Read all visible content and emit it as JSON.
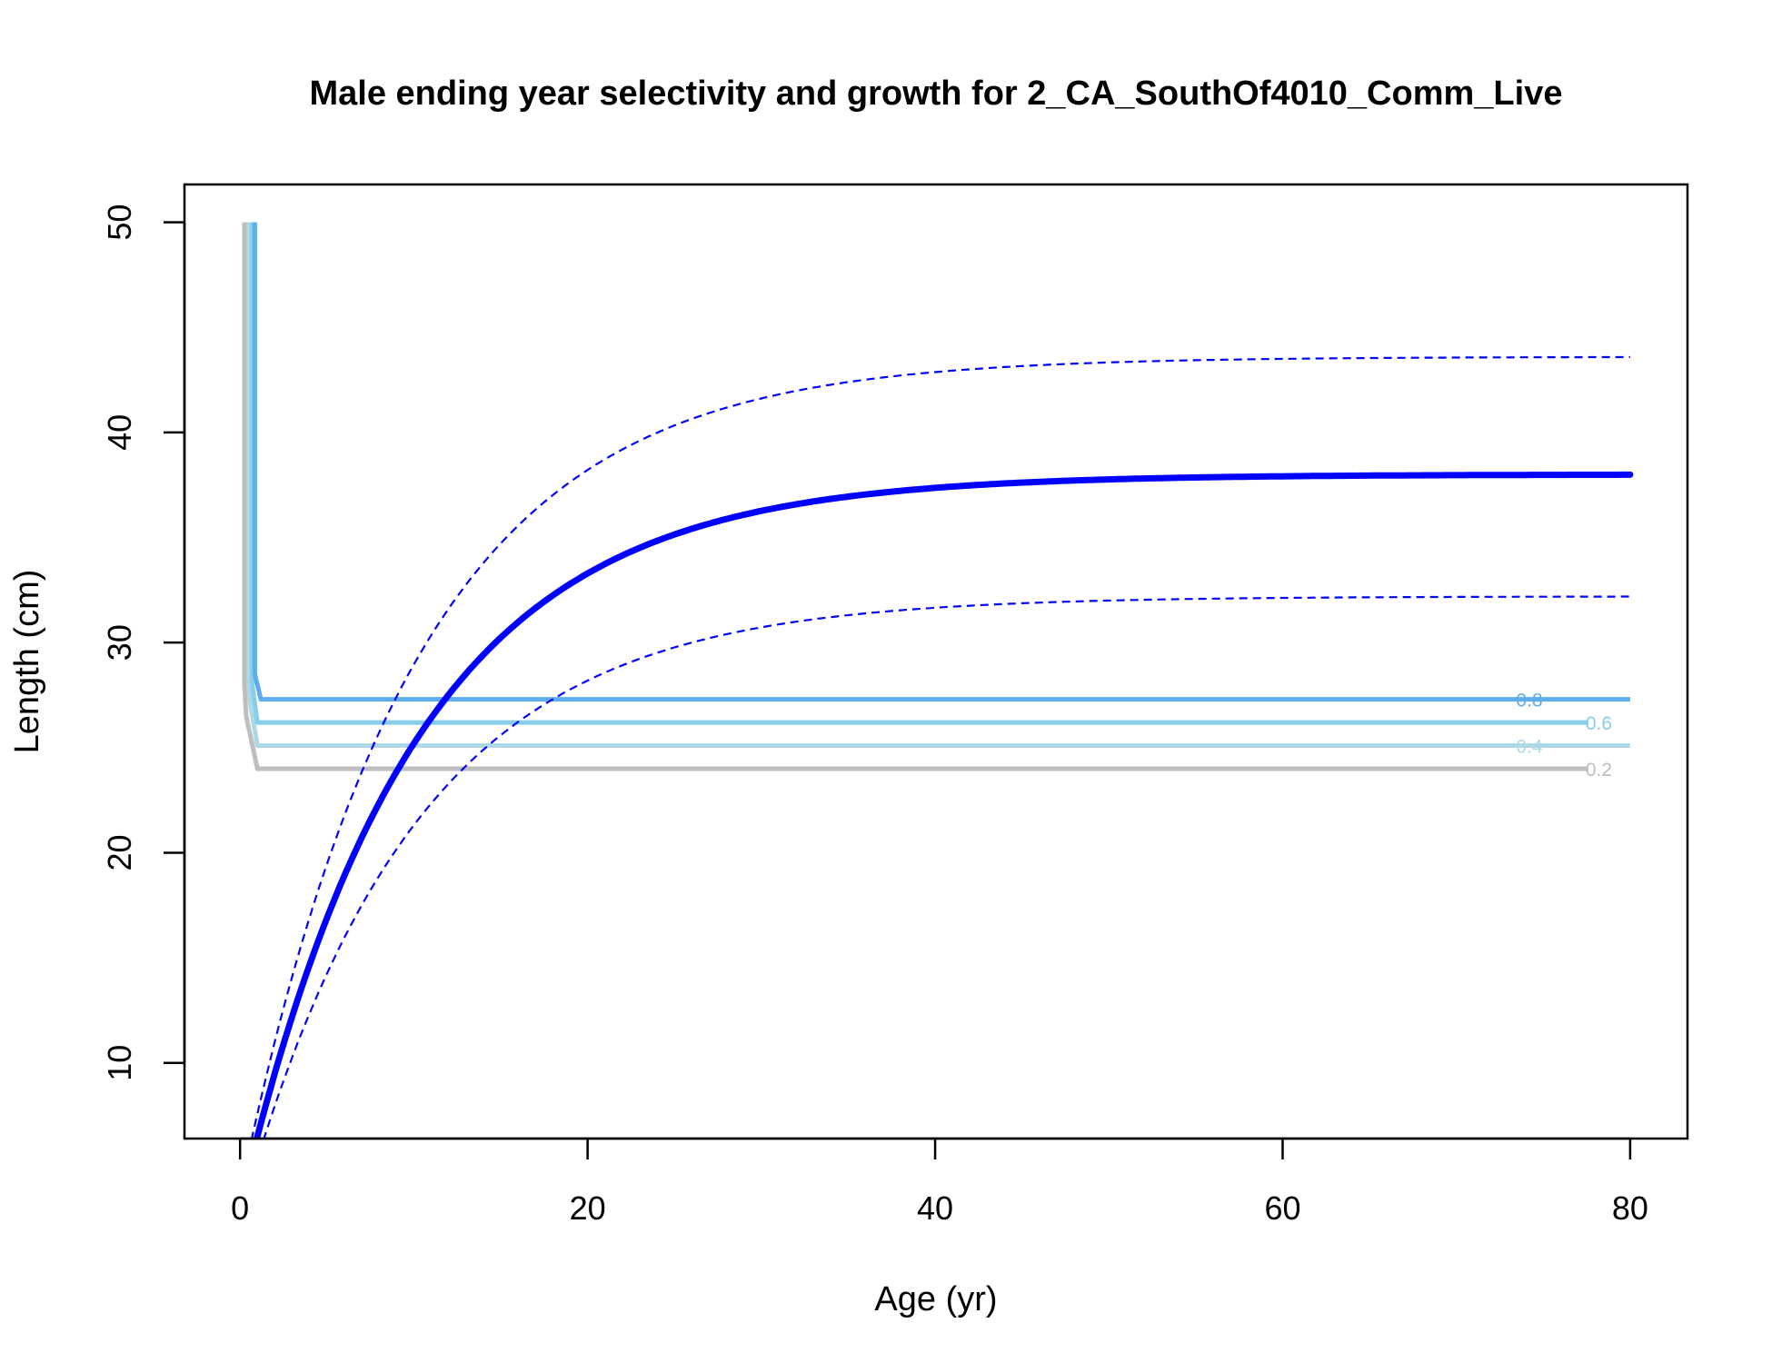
{
  "chart_data": {
    "type": "line",
    "title": "Male ending year selectivity and growth for 2_CA_SouthOf4010_Comm_Live",
    "xlabel": "Age (yr)",
    "ylabel": "Length (cm)",
    "xlim": [
      -3.2,
      83.3
    ],
    "ylim": [
      6.4,
      51.8
    ],
    "x_ticks": [
      "0",
      "20",
      "40",
      "60",
      "80"
    ],
    "y_ticks": [
      "10",
      "20",
      "30",
      "40",
      "50"
    ],
    "x_tick_values": [
      0,
      20,
      40,
      60,
      80
    ],
    "y_tick_values": [
      10,
      20,
      30,
      40,
      50
    ],
    "growth_curve": {
      "color": "#0000FF",
      "mean": {
        "Linf": 38.0,
        "L0": 3.2,
        "k": 0.1
      },
      "upper": {
        "Linf": 43.6,
        "L0": 3.8,
        "k": 0.1
      },
      "lower": {
        "Linf": 32.2,
        "L0": 2.6,
        "k": 0.1
      },
      "age_max": 80
    },
    "selectivity_contours": [
      {
        "label": "0.2",
        "color": "#BEBEBE",
        "level_length": 24.0,
        "label_age": 78.2,
        "path": [
          [
            0.25,
            50.0
          ],
          [
            0.25,
            28.0
          ],
          [
            0.35,
            26.5
          ],
          [
            1.0,
            24.0
          ],
          [
            77.6,
            24.0
          ]
        ]
      },
      {
        "label": "0.4",
        "color": "#ADD8E6",
        "level_length": 25.1,
        "label_age": 74.2,
        "path": [
          [
            0.5,
            50.0
          ],
          [
            0.5,
            28.0
          ],
          [
            0.6,
            27.0
          ],
          [
            1.0,
            25.1
          ],
          [
            73.6,
            25.1
          ],
          [
            80.0,
            25.1
          ]
        ]
      },
      {
        "label": "0.6",
        "color": "#87CEEB",
        "level_length": 26.2,
        "label_age": 78.2,
        "path": [
          [
            0.7,
            50.0
          ],
          [
            0.7,
            28.0
          ],
          [
            1.0,
            26.2
          ],
          [
            77.6,
            26.2
          ]
        ]
      },
      {
        "label": "0.8",
        "color": "#5CACEE",
        "level_length": 27.3,
        "label_age": 74.2,
        "path": [
          [
            0.85,
            50.0
          ],
          [
            0.85,
            28.5
          ],
          [
            1.2,
            27.3
          ],
          [
            73.6,
            27.3
          ],
          [
            80.0,
            27.3
          ]
        ]
      }
    ]
  }
}
